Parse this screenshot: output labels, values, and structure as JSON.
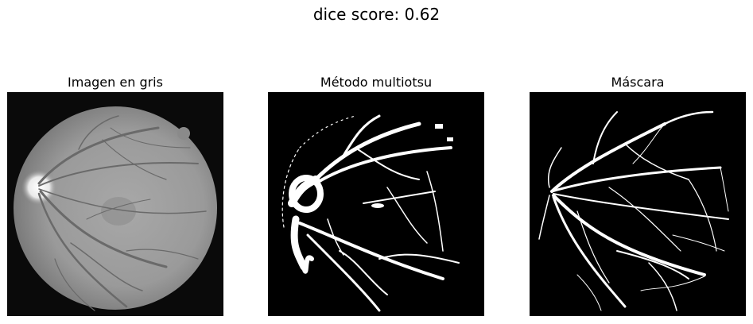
{
  "figure": {
    "suptitle": "dice score: 0.62",
    "panels": [
      {
        "title": "Imagen en gris",
        "image": "grayscale-retina-fundus"
      },
      {
        "title": "Método multiotsu",
        "image": "binary-vessel-segmentation"
      },
      {
        "title": "Máscara",
        "image": "ground-truth-vessel-mask"
      }
    ]
  }
}
